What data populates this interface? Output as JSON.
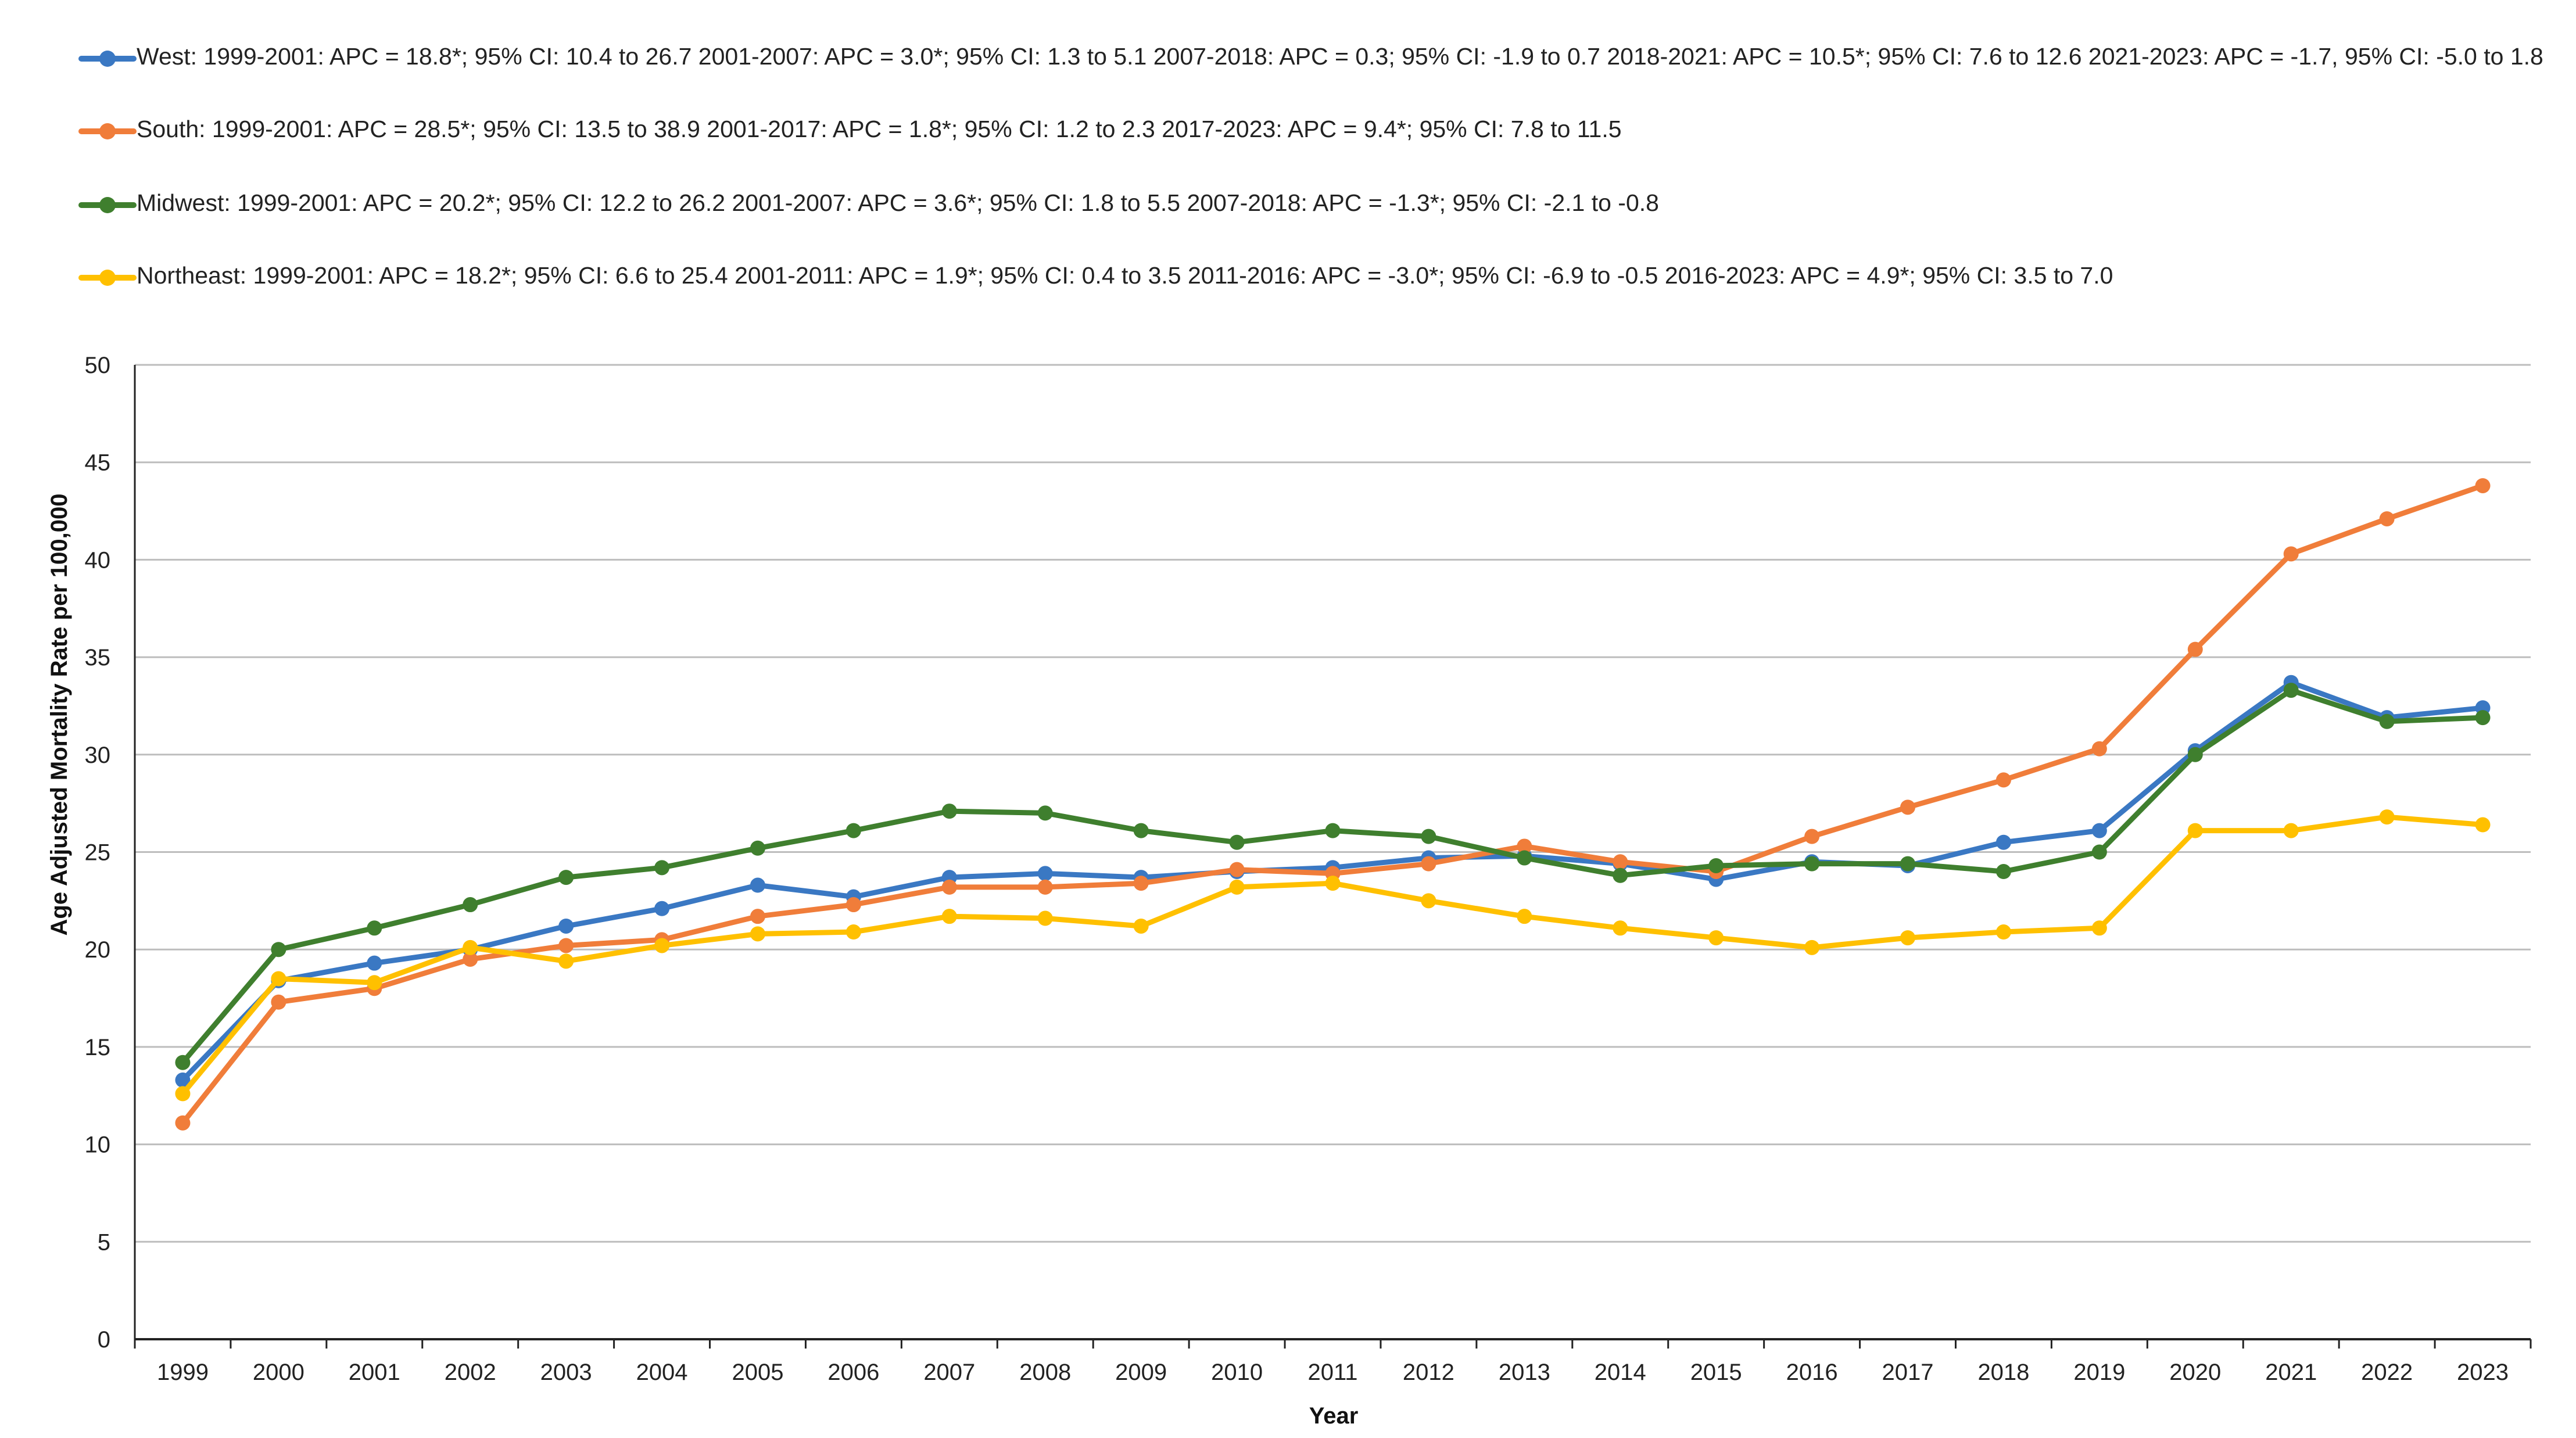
{
  "chart_data": {
    "type": "line",
    "title": "",
    "xlabel": "Year",
    "ylabel": "Age Adjusted Mortality Rate per 100,000",
    "ylim": [
      0,
      50
    ],
    "yticks": [
      "0",
      "5",
      "10",
      "15",
      "20",
      "25",
      "30",
      "35",
      "40",
      "45",
      "50"
    ],
    "grid": true,
    "legend_position": "top",
    "categories": [
      "1999",
      "2000",
      "2001",
      "2002",
      "2003",
      "2004",
      "2005",
      "2006",
      "2007",
      "2008",
      "2009",
      "2010",
      "2011",
      "2012",
      "2013",
      "2014",
      "2015",
      "2016",
      "2017",
      "2018",
      "2019",
      "2020",
      "2021",
      "2022",
      "2023"
    ],
    "series": [
      {
        "name": "West",
        "color": "#3a78c3",
        "legend": "West: 1999-2001: APC = 18.8*; 95% CI: 10.4 to 26.7 2001-2007: APC = 3.0*; 95% CI: 1.3 to 5.1 2007-2018: APC = 0.3; 95% CI: -1.9 to 0.7 2018-2021: APC = 10.5*; 95% CI: 7.6 to 12.6 2021-2023: APC = -1.7, 95% CI: -5.0 to 1.8",
        "values": [
          13.3,
          18.4,
          19.3,
          20.0,
          21.2,
          22.1,
          23.3,
          22.7,
          23.7,
          23.9,
          23.7,
          24.0,
          24.2,
          24.7,
          24.8,
          24.4,
          23.6,
          24.5,
          24.3,
          25.5,
          26.1,
          30.2,
          33.7,
          31.9,
          32.4
        ]
      },
      {
        "name": "South",
        "color": "#f07d3a",
        "legend": "South: 1999-2001: APC = 28.5*; 95% CI: 13.5 to 38.9 2001-2017: APC = 1.8*; 95% CI: 1.2 to 2.3 2017-2023: APC = 9.4*; 95% CI: 7.8 to 11.5",
        "values": [
          11.1,
          17.3,
          18.0,
          19.5,
          20.2,
          20.5,
          21.7,
          22.3,
          23.2,
          23.2,
          23.4,
          24.1,
          23.9,
          24.4,
          25.3,
          24.5,
          24.0,
          25.8,
          27.3,
          28.7,
          30.3,
          35.4,
          40.3,
          42.1,
          43.8
        ]
      },
      {
        "name": "Midwest",
        "color": "#3f7f2e",
        "legend": "Midwest: 1999-2001: APC = 20.2*; 95% CI: 12.2 to 26.2 2001-2007: APC = 3.6*; 95% CI: 1.8 to 5.5 2007-2018: APC = -1.3*; 95% CI: -2.1 to -0.8",
        "values": [
          14.2,
          20.0,
          21.1,
          22.3,
          23.7,
          24.2,
          25.2,
          26.1,
          27.1,
          27.0,
          26.1,
          25.5,
          26.1,
          25.8,
          24.7,
          23.8,
          24.3,
          24.4,
          24.4,
          24.0,
          25.0,
          30.0,
          33.3,
          31.7,
          31.9
        ]
      },
      {
        "name": "Northeast",
        "color": "#ffc000",
        "legend": "Northeast: 1999-2001: APC = 18.2*; 95% CI: 6.6 to 25.4 2001-2011: APC = 1.9*; 95% CI: 0.4 to 3.5 2011-2016: APC = -3.0*; 95% CI: -6.9 to -0.5 2016-2023: APC = 4.9*; 95% CI: 3.5 to 7.0",
        "values": [
          12.6,
          18.5,
          18.3,
          20.1,
          19.4,
          20.2,
          20.8,
          20.9,
          21.7,
          21.6,
          21.2,
          23.2,
          23.4,
          22.5,
          21.7,
          21.1,
          20.6,
          20.1,
          20.6,
          20.9,
          21.1,
          26.1,
          26.1,
          26.8,
          26.4
        ]
      }
    ]
  }
}
